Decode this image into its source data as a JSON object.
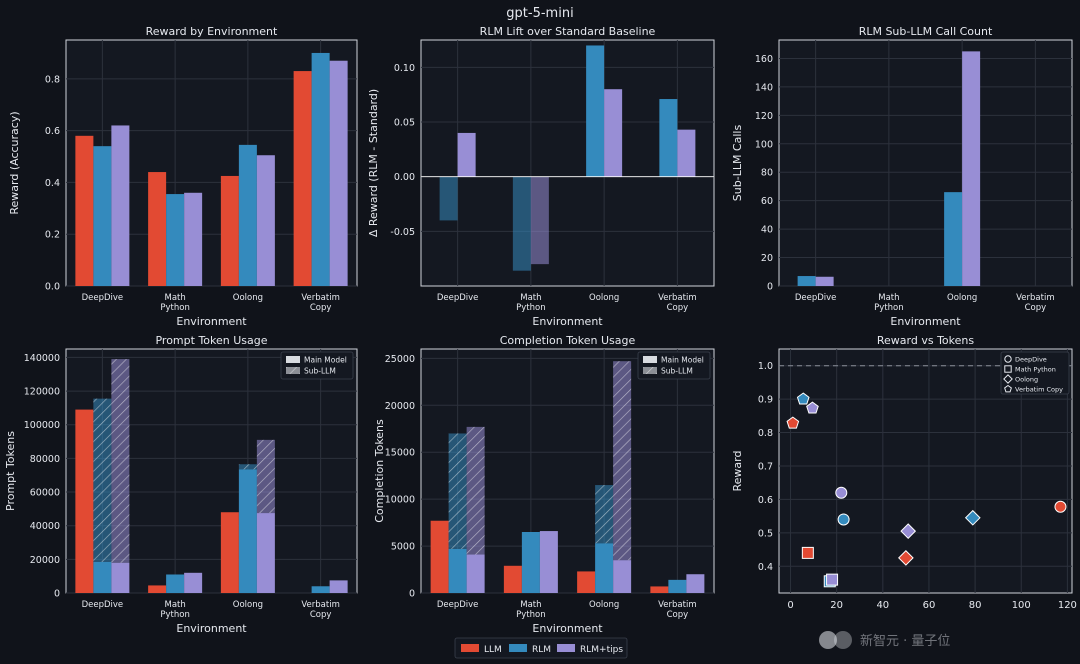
{
  "figure": {
    "title": "gpt-5-mini",
    "legend": [
      {
        "label": "LLM",
        "color": "#e24a33"
      },
      {
        "label": "RLM",
        "color": "#348abd"
      },
      {
        "label": "RLM+tips",
        "color": "#988ed5"
      }
    ],
    "watermark": "新智元 · 量子位"
  },
  "chart_data": [
    {
      "type": "bar",
      "title": "Reward by Environment",
      "xlabel": "Environment",
      "ylabel": "Reward (Accuracy)",
      "categories": [
        "DeepDive",
        "Math\nPython",
        "Oolong",
        "Verbatim\nCopy"
      ],
      "ylim": [
        0,
        0.95
      ],
      "yticks": [
        0,
        0.2,
        0.4,
        0.6,
        0.8
      ],
      "series": [
        {
          "name": "LLM",
          "values": [
            0.58,
            0.44,
            0.425,
            0.83
          ]
        },
        {
          "name": "RLM",
          "values": [
            0.54,
            0.355,
            0.545,
            0.9
          ]
        },
        {
          "name": "RLM+tips",
          "values": [
            0.62,
            0.36,
            0.505,
            0.87
          ]
        }
      ]
    },
    {
      "type": "bar",
      "title": "RLM Lift over Standard Baseline",
      "xlabel": "Environment",
      "ylabel": "Δ Reward (RLM - Standard)",
      "categories": [
        "DeepDive",
        "Math\nPython",
        "Oolong",
        "Verbatim\nCopy"
      ],
      "ylim": [
        -0.1,
        0.125
      ],
      "yticks": [
        -0.05,
        0.0,
        0.05,
        0.1
      ],
      "series": [
        {
          "name": "RLM",
          "values": [
            -0.04,
            -0.086,
            0.12,
            0.071
          ]
        },
        {
          "name": "RLM+tips",
          "values": [
            0.04,
            -0.08,
            0.08,
            0.043
          ]
        }
      ]
    },
    {
      "type": "bar",
      "title": "RLM Sub-LLM Call Count",
      "xlabel": "Environment",
      "ylabel": "Sub-LLM Calls",
      "categories": [
        "DeepDive",
        "Math\nPython",
        "Oolong",
        "Verbatim\nCopy"
      ],
      "ylim": [
        0,
        173
      ],
      "yticks": [
        0,
        20,
        40,
        60,
        80,
        100,
        120,
        140,
        160
      ],
      "series": [
        {
          "name": "RLM",
          "values": [
            7,
            0,
            66,
            0
          ]
        },
        {
          "name": "RLM+tips",
          "values": [
            6.5,
            0,
            165,
            0
          ]
        }
      ]
    },
    {
      "type": "bar",
      "title": "Prompt Token Usage",
      "xlabel": "Environment",
      "ylabel": "Prompt Tokens",
      "categories": [
        "DeepDive",
        "Math\nPython",
        "Oolong",
        "Verbatim\nCopy"
      ],
      "ylim": [
        0,
        145000
      ],
      "yticks": [
        0,
        20000,
        40000,
        60000,
        80000,
        100000,
        120000,
        140000
      ],
      "legend": [
        "Main Model",
        "Sub-LLM"
      ],
      "series": [
        {
          "name": "LLM",
          "main": [
            109000,
            4500,
            48000,
            0
          ],
          "sub": [
            0,
            0,
            0,
            0
          ]
        },
        {
          "name": "RLM",
          "main": [
            18500,
            11000,
            73500,
            4000
          ],
          "sub": [
            97000,
            0,
            3000,
            0
          ]
        },
        {
          "name": "RLM+tips",
          "main": [
            18000,
            12000,
            47500,
            7500
          ],
          "sub": [
            121000,
            0,
            43500,
            0
          ]
        }
      ]
    },
    {
      "type": "bar",
      "title": "Completion Token Usage",
      "xlabel": "Environment",
      "ylabel": "Completion Tokens",
      "categories": [
        "DeepDive",
        "Math\nPython",
        "Oolong",
        "Verbatim\nCopy"
      ],
      "ylim": [
        0,
        26000
      ],
      "yticks": [
        0,
        5000,
        10000,
        15000,
        20000,
        25000
      ],
      "legend": [
        "Main Model",
        "Sub-LLM"
      ],
      "series": [
        {
          "name": "LLM",
          "main": [
            7700,
            2900,
            2300,
            700
          ],
          "sub": [
            0,
            0,
            0,
            0
          ]
        },
        {
          "name": "RLM",
          "main": [
            4700,
            6500,
            5300,
            1400
          ],
          "sub": [
            12300,
            0,
            6200,
            0
          ]
        },
        {
          "name": "RLM+tips",
          "main": [
            4100,
            6600,
            3500,
            2000
          ],
          "sub": [
            13600,
            0,
            21200,
            0
          ]
        }
      ]
    },
    {
      "type": "scatter",
      "title": "Reward vs Tokens",
      "xlabel": "",
      "ylabel": "Reward",
      "xlim": [
        -5,
        122
      ],
      "ylim": [
        0.32,
        1.05
      ],
      "xticks": [
        0,
        20,
        40,
        60,
        80,
        100,
        120
      ],
      "yticks": [
        0.4,
        0.5,
        0.6,
        0.7,
        0.8,
        0.9,
        1.0
      ],
      "reference_line": 1.0,
      "legend": [
        "DeepDive",
        "Math Python",
        "Oolong",
        "Verbatim Copy"
      ],
      "points": [
        {
          "env": "DeepDive",
          "series": "LLM",
          "x": 117,
          "y": 0.578
        },
        {
          "env": "DeepDive",
          "series": "RLM",
          "x": 23,
          "y": 0.54
        },
        {
          "env": "DeepDive",
          "series": "RLM+tips",
          "x": 22,
          "y": 0.62
        },
        {
          "env": "Math Python",
          "series": "LLM",
          "x": 7.5,
          "y": 0.44
        },
        {
          "env": "Math Python",
          "series": "RLM",
          "x": 17,
          "y": 0.355
        },
        {
          "env": "Math Python",
          "series": "RLM+tips",
          "x": 18,
          "y": 0.36
        },
        {
          "env": "Oolong",
          "series": "LLM",
          "x": 50,
          "y": 0.425
        },
        {
          "env": "Oolong",
          "series": "RLM",
          "x": 79,
          "y": 0.545
        },
        {
          "env": "Oolong",
          "series": "RLM+tips",
          "x": 51,
          "y": 0.505
        },
        {
          "env": "Verbatim Copy",
          "series": "LLM",
          "x": 1,
          "y": 0.828
        },
        {
          "env": "Verbatim Copy",
          "series": "RLM",
          "x": 5.5,
          "y": 0.9
        },
        {
          "env": "Verbatim Copy",
          "series": "RLM+tips",
          "x": 9.5,
          "y": 0.873
        }
      ]
    }
  ]
}
